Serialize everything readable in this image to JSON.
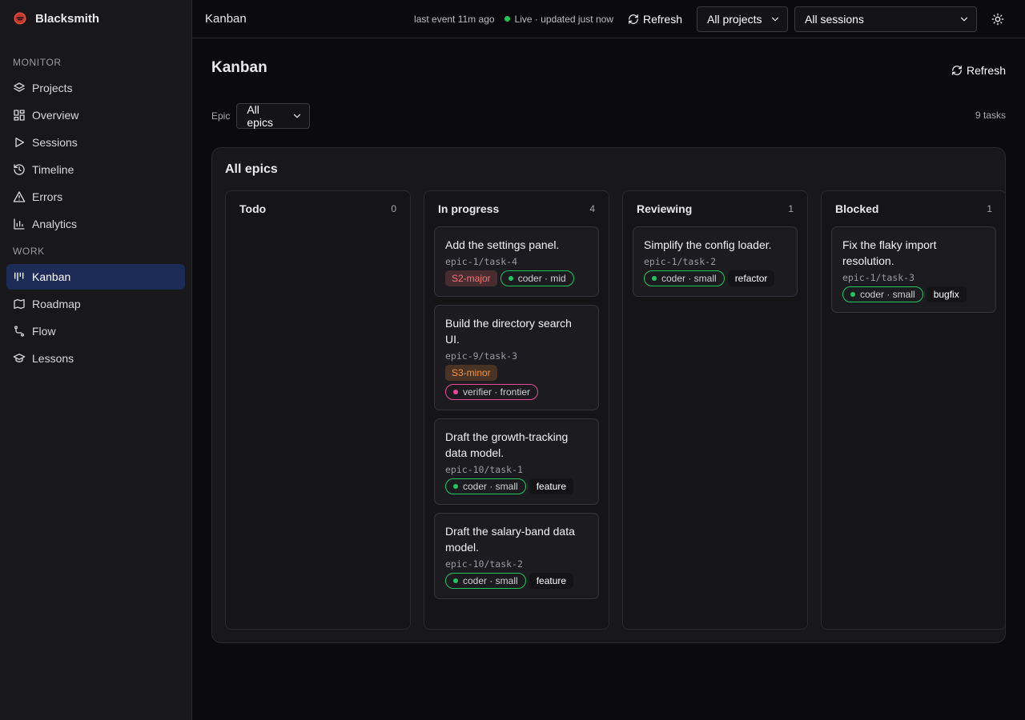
{
  "sidebar": {
    "brand": "Blacksmith",
    "sections": [
      {
        "title": "MONITOR",
        "items": [
          {
            "label": "Projects"
          },
          {
            "label": "Overview"
          },
          {
            "label": "Sessions"
          },
          {
            "label": "Timeline"
          },
          {
            "label": "Errors"
          },
          {
            "label": "Analytics"
          }
        ]
      },
      {
        "title": "WORK",
        "items": [
          {
            "label": "Kanban",
            "active": true
          },
          {
            "label": "Roadmap"
          },
          {
            "label": "Flow"
          },
          {
            "label": "Lessons"
          }
        ]
      }
    ]
  },
  "topbar": {
    "title": "Kanban",
    "last_event": "last event 11m ago",
    "live": "Live · updated just now",
    "refresh": "Refresh",
    "project_select": "All projects",
    "session_select": "All sessions"
  },
  "page": {
    "title": "Kanban",
    "refresh": "Refresh",
    "epic_label": "Epic",
    "epic_select": "All epics",
    "task_count": "9 tasks"
  },
  "board": {
    "title": "All epics",
    "columns": [
      {
        "name": "Todo",
        "count": 0,
        "cards": []
      },
      {
        "name": "In progress",
        "count": 4,
        "cards": [
          {
            "title": "Add the settings panel.",
            "id": "epic-1/task-4",
            "tags": [
              {
                "text": "S2-major",
                "variant": "filled",
                "color": "#f87171"
              },
              {
                "text": "coder · mid",
                "variant": "pill",
                "color": "#22c55e"
              }
            ]
          },
          {
            "title": "Build the directory search UI.",
            "id": "epic-9/task-3",
            "tags": [
              {
                "text": "S3-minor",
                "variant": "filled",
                "color": "#fb923c"
              },
              {
                "text": "verifier · frontier",
                "variant": "pill",
                "color": "#ec4899"
              }
            ]
          },
          {
            "title": "Draft the growth-tracking data model.",
            "id": "epic-10/task-1",
            "tags": [
              {
                "text": "coder · small",
                "variant": "pill",
                "color": "#22c55e"
              },
              {
                "text": "feature",
                "variant": "plain",
                "color": "#ffffff"
              }
            ]
          },
          {
            "title": "Draft the salary-band data model.",
            "id": "epic-10/task-2",
            "tags": [
              {
                "text": "coder · small",
                "variant": "pill",
                "color": "#22c55e"
              },
              {
                "text": "feature",
                "variant": "plain",
                "color": "#ffffff"
              }
            ]
          }
        ]
      },
      {
        "name": "Reviewing",
        "count": 1,
        "cards": [
          {
            "title": "Simplify the config loader.",
            "id": "epic-1/task-2",
            "tags": [
              {
                "text": "coder · small",
                "variant": "pill",
                "color": "#22c55e"
              },
              {
                "text": "refactor",
                "variant": "plain",
                "color": "#ffffff"
              }
            ]
          }
        ]
      },
      {
        "name": "Blocked",
        "count": 1,
        "cards": [
          {
            "title": "Fix the flaky import resolution.",
            "id": "epic-1/task-3",
            "tags": [
              {
                "text": "coder · small",
                "variant": "pill",
                "color": "#22c55e"
              },
              {
                "text": "bugfix",
                "variant": "plain",
                "color": "#ffffff"
              }
            ]
          }
        ]
      }
    ]
  }
}
